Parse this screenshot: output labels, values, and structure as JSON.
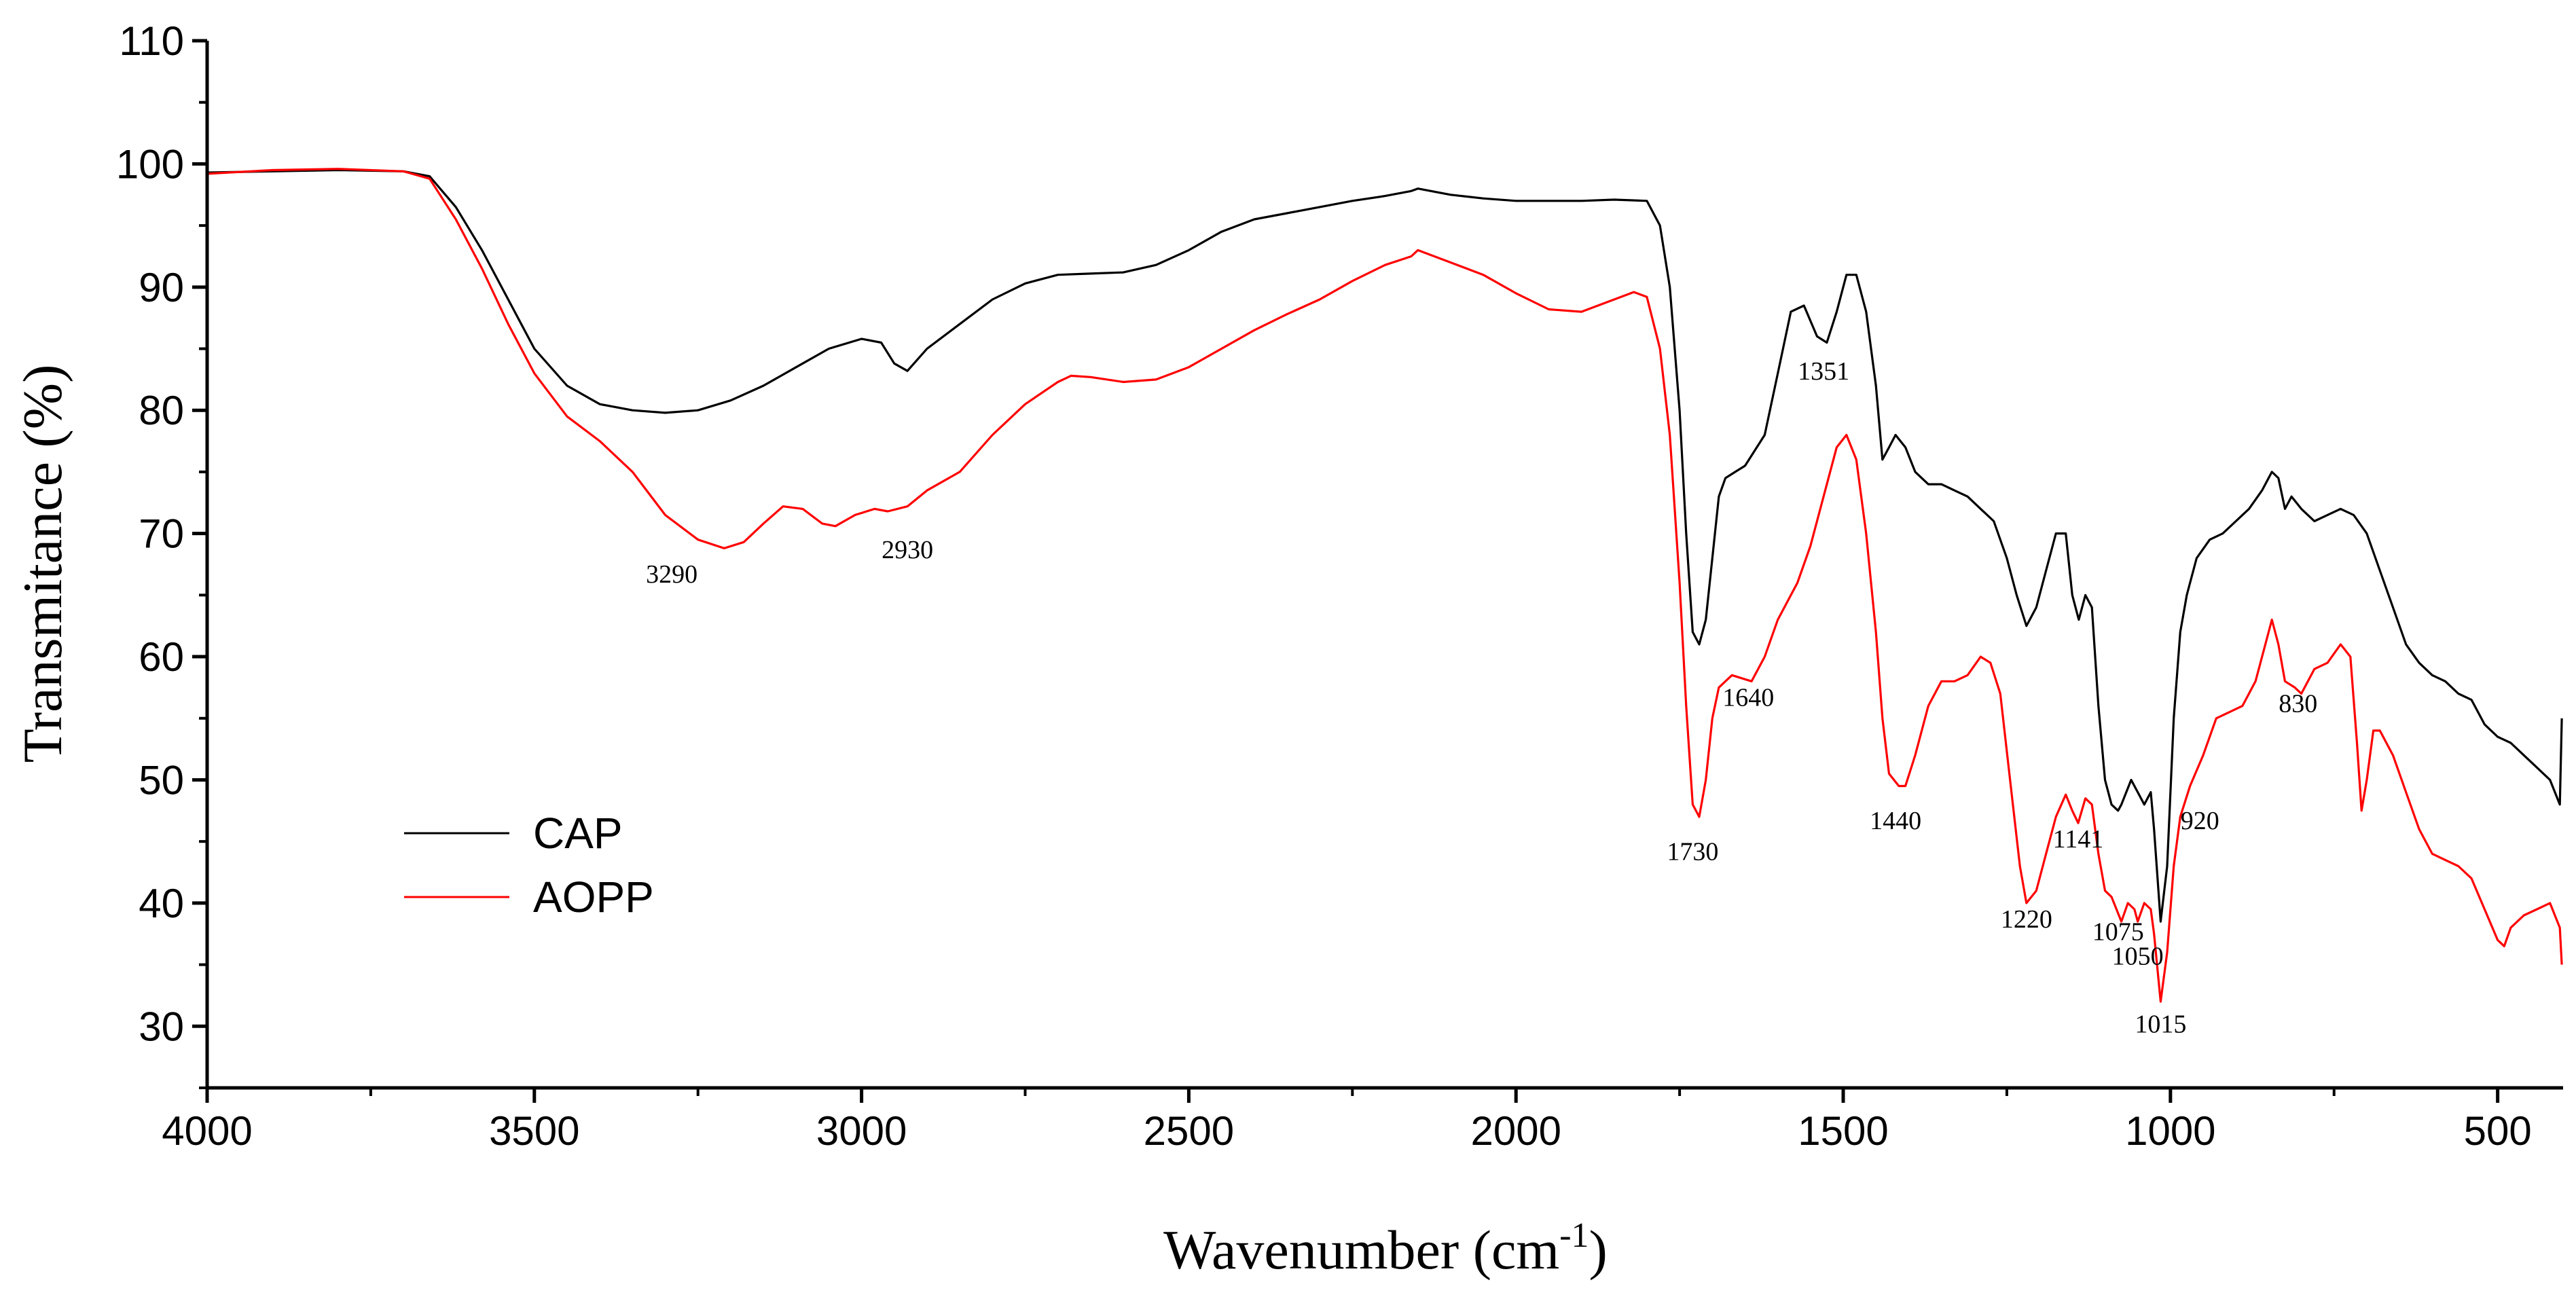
{
  "chart_data": {
    "type": "line",
    "title": "",
    "xlabel": "Wavenumber (cm",
    "xlabel_sup": "-1",
    "xlabel_close": ")",
    "ylabel": "Transmitance (%)",
    "xlim": [
      4000,
      400
    ],
    "ylim": [
      25,
      110
    ],
    "x_reversed": true,
    "grid": false,
    "legend_position": "center-left",
    "x_ticks": [
      4000,
      3500,
      3000,
      2500,
      2000,
      1500,
      1000,
      500
    ],
    "x_tick_labels": [
      "4000",
      "3500",
      "3000",
      "2500",
      "2000",
      "1500",
      "1000",
      "500"
    ],
    "y_ticks": [
      30,
      40,
      50,
      60,
      70,
      80,
      90,
      100,
      110
    ],
    "y_tick_labels": [
      "30",
      "40",
      "50",
      "60",
      "70",
      "80",
      "90",
      "100",
      "110"
    ],
    "series": [
      {
        "name": "CAP",
        "color": "#000000",
        "points": [
          [
            4000,
            99.3
          ],
          [
            3900,
            99.4
          ],
          [
            3800,
            99.5
          ],
          [
            3700,
            99.4
          ],
          [
            3660,
            99.0
          ],
          [
            3620,
            96.5
          ],
          [
            3580,
            93.0
          ],
          [
            3540,
            89.0
          ],
          [
            3500,
            85.0
          ],
          [
            3450,
            82.0
          ],
          [
            3400,
            80.5
          ],
          [
            3350,
            80.0
          ],
          [
            3300,
            79.8
          ],
          [
            3250,
            80.0
          ],
          [
            3200,
            80.8
          ],
          [
            3150,
            82.0
          ],
          [
            3100,
            83.5
          ],
          [
            3050,
            85.0
          ],
          [
            3000,
            85.8
          ],
          [
            2970,
            85.5
          ],
          [
            2950,
            83.8
          ],
          [
            2930,
            83.2
          ],
          [
            2900,
            85.0
          ],
          [
            2850,
            87.0
          ],
          [
            2800,
            89.0
          ],
          [
            2750,
            90.3
          ],
          [
            2700,
            91.0
          ],
          [
            2650,
            91.1
          ],
          [
            2600,
            91.2
          ],
          [
            2550,
            91.8
          ],
          [
            2500,
            93.0
          ],
          [
            2450,
            94.5
          ],
          [
            2400,
            95.5
          ],
          [
            2350,
            96.0
          ],
          [
            2300,
            96.5
          ],
          [
            2250,
            97.0
          ],
          [
            2200,
            97.4
          ],
          [
            2160,
            97.8
          ],
          [
            2150,
            98.0
          ],
          [
            2100,
            97.5
          ],
          [
            2050,
            97.2
          ],
          [
            2000,
            97.0
          ],
          [
            1900,
            97.0
          ],
          [
            1850,
            97.1
          ],
          [
            1800,
            97.0
          ],
          [
            1780,
            95.0
          ],
          [
            1765,
            90.0
          ],
          [
            1750,
            80.0
          ],
          [
            1740,
            70.0
          ],
          [
            1730,
            62.0
          ],
          [
            1720,
            61.0
          ],
          [
            1710,
            63.0
          ],
          [
            1700,
            68.0
          ],
          [
            1690,
            73.0
          ],
          [
            1680,
            74.5
          ],
          [
            1665,
            75.0
          ],
          [
            1650,
            75.5
          ],
          [
            1620,
            78.0
          ],
          [
            1600,
            83.0
          ],
          [
            1580,
            88.0
          ],
          [
            1560,
            88.5
          ],
          [
            1540,
            86.0
          ],
          [
            1525,
            85.5
          ],
          [
            1510,
            88.0
          ],
          [
            1495,
            91.0
          ],
          [
            1480,
            91.0
          ],
          [
            1465,
            88.0
          ],
          [
            1450,
            82.0
          ],
          [
            1440,
            76.0
          ],
          [
            1430,
            77.0
          ],
          [
            1420,
            78.0
          ],
          [
            1405,
            77.0
          ],
          [
            1390,
            75.0
          ],
          [
            1370,
            74.0
          ],
          [
            1350,
            74.0
          ],
          [
            1330,
            73.5
          ],
          [
            1310,
            73.0
          ],
          [
            1290,
            72.0
          ],
          [
            1270,
            71.0
          ],
          [
            1250,
            68.0
          ],
          [
            1235,
            65.0
          ],
          [
            1220,
            62.5
          ],
          [
            1205,
            64.0
          ],
          [
            1190,
            67.0
          ],
          [
            1175,
            70.0
          ],
          [
            1160,
            70.0
          ],
          [
            1150,
            65.0
          ],
          [
            1140,
            63.0
          ],
          [
            1130,
            65.0
          ],
          [
            1120,
            64.0
          ],
          [
            1110,
            56.0
          ],
          [
            1100,
            50.0
          ],
          [
            1090,
            48.0
          ],
          [
            1080,
            47.5
          ],
          [
            1075,
            48.0
          ],
          [
            1060,
            50.0
          ],
          [
            1050,
            49.0
          ],
          [
            1040,
            48.0
          ],
          [
            1030,
            49.0
          ],
          [
            1025,
            46.0
          ],
          [
            1015,
            38.5
          ],
          [
            1005,
            43.0
          ],
          [
            995,
            55.0
          ],
          [
            985,
            62.0
          ],
          [
            975,
            65.0
          ],
          [
            960,
            68.0
          ],
          [
            940,
            69.5
          ],
          [
            920,
            70.0
          ],
          [
            900,
            71.0
          ],
          [
            880,
            72.0
          ],
          [
            860,
            73.5
          ],
          [
            845,
            75.0
          ],
          [
            835,
            74.5
          ],
          [
            825,
            72.0
          ],
          [
            815,
            73.0
          ],
          [
            800,
            72.0
          ],
          [
            780,
            71.0
          ],
          [
            760,
            71.5
          ],
          [
            740,
            72.0
          ],
          [
            720,
            71.5
          ],
          [
            700,
            70.0
          ],
          [
            680,
            67.0
          ],
          [
            660,
            64.0
          ],
          [
            640,
            61.0
          ],
          [
            620,
            59.5
          ],
          [
            600,
            58.5
          ],
          [
            580,
            58.0
          ],
          [
            560,
            57.0
          ],
          [
            540,
            56.5
          ],
          [
            520,
            54.5
          ],
          [
            500,
            53.5
          ],
          [
            480,
            53.0
          ],
          [
            460,
            52.0
          ],
          [
            440,
            51.0
          ],
          [
            420,
            50.0
          ],
          [
            405,
            48.0
          ],
          [
            402,
            55.0
          ]
        ]
      },
      {
        "name": "AOPP",
        "color": "#ff0000",
        "points": [
          [
            4000,
            99.2
          ],
          [
            3900,
            99.5
          ],
          [
            3800,
            99.6
          ],
          [
            3700,
            99.4
          ],
          [
            3660,
            98.8
          ],
          [
            3620,
            95.5
          ],
          [
            3580,
            91.5
          ],
          [
            3540,
            87.0
          ],
          [
            3500,
            83.0
          ],
          [
            3450,
            79.5
          ],
          [
            3400,
            77.5
          ],
          [
            3350,
            75.0
          ],
          [
            3300,
            71.5
          ],
          [
            3250,
            69.5
          ],
          [
            3210,
            68.8
          ],
          [
            3180,
            69.3
          ],
          [
            3150,
            70.8
          ],
          [
            3120,
            72.2
          ],
          [
            3090,
            72.0
          ],
          [
            3060,
            70.8
          ],
          [
            3040,
            70.6
          ],
          [
            3010,
            71.5
          ],
          [
            2980,
            72.0
          ],
          [
            2960,
            71.8
          ],
          [
            2930,
            72.2
          ],
          [
            2900,
            73.5
          ],
          [
            2850,
            75.0
          ],
          [
            2800,
            78.0
          ],
          [
            2750,
            80.5
          ],
          [
            2700,
            82.3
          ],
          [
            2680,
            82.8
          ],
          [
            2650,
            82.7
          ],
          [
            2600,
            82.3
          ],
          [
            2550,
            82.5
          ],
          [
            2500,
            83.5
          ],
          [
            2450,
            85.0
          ],
          [
            2400,
            86.5
          ],
          [
            2350,
            87.8
          ],
          [
            2300,
            89.0
          ],
          [
            2250,
            90.5
          ],
          [
            2200,
            91.8
          ],
          [
            2160,
            92.5
          ],
          [
            2150,
            93.0
          ],
          [
            2100,
            92.0
          ],
          [
            2050,
            91.0
          ],
          [
            2000,
            89.5
          ],
          [
            1950,
            88.2
          ],
          [
            1900,
            88.0
          ],
          [
            1850,
            89.0
          ],
          [
            1820,
            89.6
          ],
          [
            1800,
            89.2
          ],
          [
            1780,
            85.0
          ],
          [
            1765,
            78.0
          ],
          [
            1750,
            66.0
          ],
          [
            1740,
            56.0
          ],
          [
            1730,
            48.0
          ],
          [
            1720,
            47.0
          ],
          [
            1710,
            50.0
          ],
          [
            1700,
            55.0
          ],
          [
            1690,
            57.5
          ],
          [
            1670,
            58.5
          ],
          [
            1640,
            58.0
          ],
          [
            1620,
            60.0
          ],
          [
            1600,
            63.0
          ],
          [
            1570,
            66.0
          ],
          [
            1550,
            69.0
          ],
          [
            1530,
            73.0
          ],
          [
            1510,
            77.0
          ],
          [
            1495,
            78.0
          ],
          [
            1480,
            76.0
          ],
          [
            1465,
            70.0
          ],
          [
            1450,
            62.0
          ],
          [
            1440,
            55.0
          ],
          [
            1430,
            50.5
          ],
          [
            1415,
            49.5
          ],
          [
            1405,
            49.5
          ],
          [
            1390,
            52.0
          ],
          [
            1370,
            56.0
          ],
          [
            1350,
            58.0
          ],
          [
            1330,
            58.0
          ],
          [
            1310,
            58.5
          ],
          [
            1290,
            60.0
          ],
          [
            1275,
            59.5
          ],
          [
            1260,
            57.0
          ],
          [
            1245,
            50.0
          ],
          [
            1230,
            43.0
          ],
          [
            1220,
            40.0
          ],
          [
            1205,
            41.0
          ],
          [
            1190,
            44.0
          ],
          [
            1175,
            47.0
          ],
          [
            1160,
            48.8
          ],
          [
            1150,
            47.5
          ],
          [
            1141,
            46.5
          ],
          [
            1130,
            48.5
          ],
          [
            1120,
            48.0
          ],
          [
            1110,
            44.0
          ],
          [
            1100,
            41.0
          ],
          [
            1090,
            40.5
          ],
          [
            1075,
            38.5
          ],
          [
            1065,
            40.0
          ],
          [
            1055,
            39.5
          ],
          [
            1050,
            38.5
          ],
          [
            1040,
            40.0
          ],
          [
            1030,
            39.5
          ],
          [
            1025,
            37.5
          ],
          [
            1015,
            32.0
          ],
          [
            1005,
            36.0
          ],
          [
            995,
            43.0
          ],
          [
            985,
            47.0
          ],
          [
            970,
            49.5
          ],
          [
            950,
            52.0
          ],
          [
            930,
            55.0
          ],
          [
            910,
            55.5
          ],
          [
            890,
            56.0
          ],
          [
            870,
            58.0
          ],
          [
            855,
            61.0
          ],
          [
            845,
            63.0
          ],
          [
            835,
            61.0
          ],
          [
            825,
            58.0
          ],
          [
            810,
            57.5
          ],
          [
            800,
            57.0
          ],
          [
            780,
            59.0
          ],
          [
            760,
            59.5
          ],
          [
            740,
            61.0
          ],
          [
            725,
            60.0
          ],
          [
            715,
            53.0
          ],
          [
            708,
            47.5
          ],
          [
            700,
            50.0
          ],
          [
            690,
            54.0
          ],
          [
            680,
            54.0
          ],
          [
            660,
            52.0
          ],
          [
            640,
            49.0
          ],
          [
            620,
            46.0
          ],
          [
            600,
            44.0
          ],
          [
            580,
            43.5
          ],
          [
            560,
            43.0
          ],
          [
            540,
            42.0
          ],
          [
            520,
            39.5
          ],
          [
            500,
            37.0
          ],
          [
            490,
            36.5
          ],
          [
            480,
            38.0
          ],
          [
            460,
            39.0
          ],
          [
            440,
            39.5
          ],
          [
            420,
            40.0
          ],
          [
            405,
            38.0
          ],
          [
            402,
            35.0
          ]
        ]
      }
    ],
    "annotations": [
      {
        "text": "3290",
        "x": 3290,
        "y": 66.0
      },
      {
        "text": "2930",
        "x": 2930,
        "y": 68.0
      },
      {
        "text": "1351",
        "x": 1530,
        "y": 82.5
      },
      {
        "text": "1640",
        "x": 1645,
        "y": 56.0
      },
      {
        "text": "1730",
        "x": 1730,
        "y": 43.5
      },
      {
        "text": "1440",
        "x": 1420,
        "y": 46.0
      },
      {
        "text": "1220",
        "x": 1220,
        "y": 38.0
      },
      {
        "text": "1141",
        "x": 1141,
        "y": 44.5
      },
      {
        "text": "1075",
        "x": 1080,
        "y": 37.0
      },
      {
        "text": "1050",
        "x": 1050,
        "y": 35.0
      },
      {
        "text": "1015",
        "x": 1015,
        "y": 29.5
      },
      {
        "text": "920",
        "x": 955,
        "y": 46.0
      },
      {
        "text": "830",
        "x": 805,
        "y": 55.5
      }
    ]
  }
}
